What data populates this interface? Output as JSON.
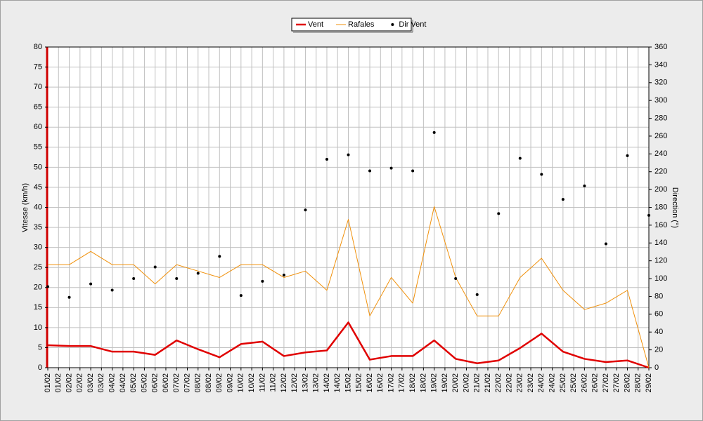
{
  "chart_data": {
    "type": "line",
    "y_label": "Vitesse (km/h)",
    "y2_label": "Direction (°)",
    "x": [
      1,
      2,
      3,
      4,
      5,
      6,
      7,
      8,
      9,
      10,
      11,
      12,
      13,
      14,
      15,
      16,
      17,
      18,
      19,
      20,
      21,
      22,
      23,
      24,
      25,
      26,
      27,
      28,
      29
    ],
    "xlim": [
      1,
      29
    ],
    "xticks": [
      {
        "value": 1,
        "label": "01/02"
      },
      {
        "value": 1.5,
        "label": "01/02"
      },
      {
        "value": 2,
        "label": "02/02"
      },
      {
        "value": 2.5,
        "label": "02/02"
      },
      {
        "value": 3,
        "label": "03/02"
      },
      {
        "value": 3.5,
        "label": "03/02"
      },
      {
        "value": 4,
        "label": "04/02"
      },
      {
        "value": 4.5,
        "label": "04/02"
      },
      {
        "value": 5,
        "label": "05/02"
      },
      {
        "value": 5.5,
        "label": "05/02"
      },
      {
        "value": 6,
        "label": "06/02"
      },
      {
        "value": 6.5,
        "label": "06/02"
      },
      {
        "value": 7,
        "label": "07/02"
      },
      {
        "value": 7.5,
        "label": "07/02"
      },
      {
        "value": 8,
        "label": "08/02"
      },
      {
        "value": 8.5,
        "label": "08/02"
      },
      {
        "value": 9,
        "label": "09/02"
      },
      {
        "value": 9.5,
        "label": "09/02"
      },
      {
        "value": 10,
        "label": "10/02"
      },
      {
        "value": 10.5,
        "label": "10/02"
      },
      {
        "value": 11,
        "label": "11/02"
      },
      {
        "value": 11.5,
        "label": "11/02"
      },
      {
        "value": 12,
        "label": "12/02"
      },
      {
        "value": 12.5,
        "label": "12/02"
      },
      {
        "value": 13,
        "label": "13/02"
      },
      {
        "value": 13.5,
        "label": "13/02"
      },
      {
        "value": 14,
        "label": "14/02"
      },
      {
        "value": 14.5,
        "label": "14/02"
      },
      {
        "value": 15,
        "label": "15/02"
      },
      {
        "value": 15.5,
        "label": "15/02"
      },
      {
        "value": 16,
        "label": "16/02"
      },
      {
        "value": 16.5,
        "label": "16/02"
      },
      {
        "value": 17,
        "label": "17/02"
      },
      {
        "value": 17.5,
        "label": "17/02"
      },
      {
        "value": 18,
        "label": "18/02"
      },
      {
        "value": 18.5,
        "label": "18/02"
      },
      {
        "value": 19,
        "label": "19/02"
      },
      {
        "value": 19.5,
        "label": "19/02"
      },
      {
        "value": 20,
        "label": "20/02"
      },
      {
        "value": 20.5,
        "label": "20/02"
      },
      {
        "value": 21,
        "label": "21/02"
      },
      {
        "value": 21.5,
        "label": "21/02"
      },
      {
        "value": 22,
        "label": "22/02"
      },
      {
        "value": 22.5,
        "label": "22/02"
      },
      {
        "value": 23,
        "label": "23/02"
      },
      {
        "value": 23.5,
        "label": "23/02"
      },
      {
        "value": 24,
        "label": "24/02"
      },
      {
        "value": 24.5,
        "label": "24/02"
      },
      {
        "value": 25,
        "label": "25/02"
      },
      {
        "value": 25.5,
        "label": "25/02"
      },
      {
        "value": 26,
        "label": "26/02"
      },
      {
        "value": 26.5,
        "label": "26/02"
      },
      {
        "value": 27,
        "label": "27/02"
      },
      {
        "value": 27.5,
        "label": "27/02"
      },
      {
        "value": 28,
        "label": "28/02"
      },
      {
        "value": 28.5,
        "label": "28/02"
      },
      {
        "value": 29,
        "label": "29/02"
      }
    ],
    "ylim": [
      0,
      80
    ],
    "yticks": [
      0,
      5,
      10,
      15,
      20,
      25,
      30,
      35,
      40,
      45,
      50,
      55,
      60,
      65,
      70,
      75,
      80
    ],
    "y2lim": [
      0,
      360
    ],
    "y2ticks": [
      0,
      20,
      40,
      60,
      80,
      100,
      120,
      140,
      160,
      180,
      200,
      220,
      240,
      260,
      280,
      300,
      320,
      340,
      360
    ],
    "grid": true,
    "legend": "top",
    "series": [
      {
        "name": "Vent",
        "type": "line",
        "color": "#e00000",
        "width": 2.5,
        "values": [
          5.6,
          5.4,
          5.4,
          4.0,
          4.0,
          3.2,
          6.8,
          4.6,
          2.6,
          5.9,
          6.5,
          2.9,
          3.8,
          4.3,
          11.3,
          2.0,
          2.9,
          2.9,
          6.8,
          2.2,
          1.1,
          1.8,
          4.9,
          8.5,
          4.0,
          2.2,
          1.4,
          1.8,
          0
        ]
      },
      {
        "name": "Rafales",
        "type": "line",
        "color": "#f0900a",
        "width": 1,
        "values": [
          25.7,
          25.7,
          29,
          25.7,
          25.7,
          20.9,
          25.7,
          24.1,
          22.5,
          25.7,
          25.7,
          22.5,
          24.1,
          19.3,
          37,
          12.9,
          22.5,
          16.1,
          40.2,
          22.5,
          12.9,
          12.9,
          22.5,
          27.3,
          19.3,
          14.5,
          16.1,
          19.3,
          0
        ]
      },
      {
        "name": "Dir Vent",
        "type": "scatter",
        "axis": "y2",
        "color": "#000000",
        "values": [
          91,
          79,
          94,
          87,
          100,
          113,
          100,
          106,
          125,
          81,
          97,
          104,
          177,
          234,
          239,
          221,
          224,
          221,
          264,
          100,
          82,
          173,
          235,
          217,
          189,
          204,
          139,
          238,
          171
        ]
      }
    ]
  }
}
